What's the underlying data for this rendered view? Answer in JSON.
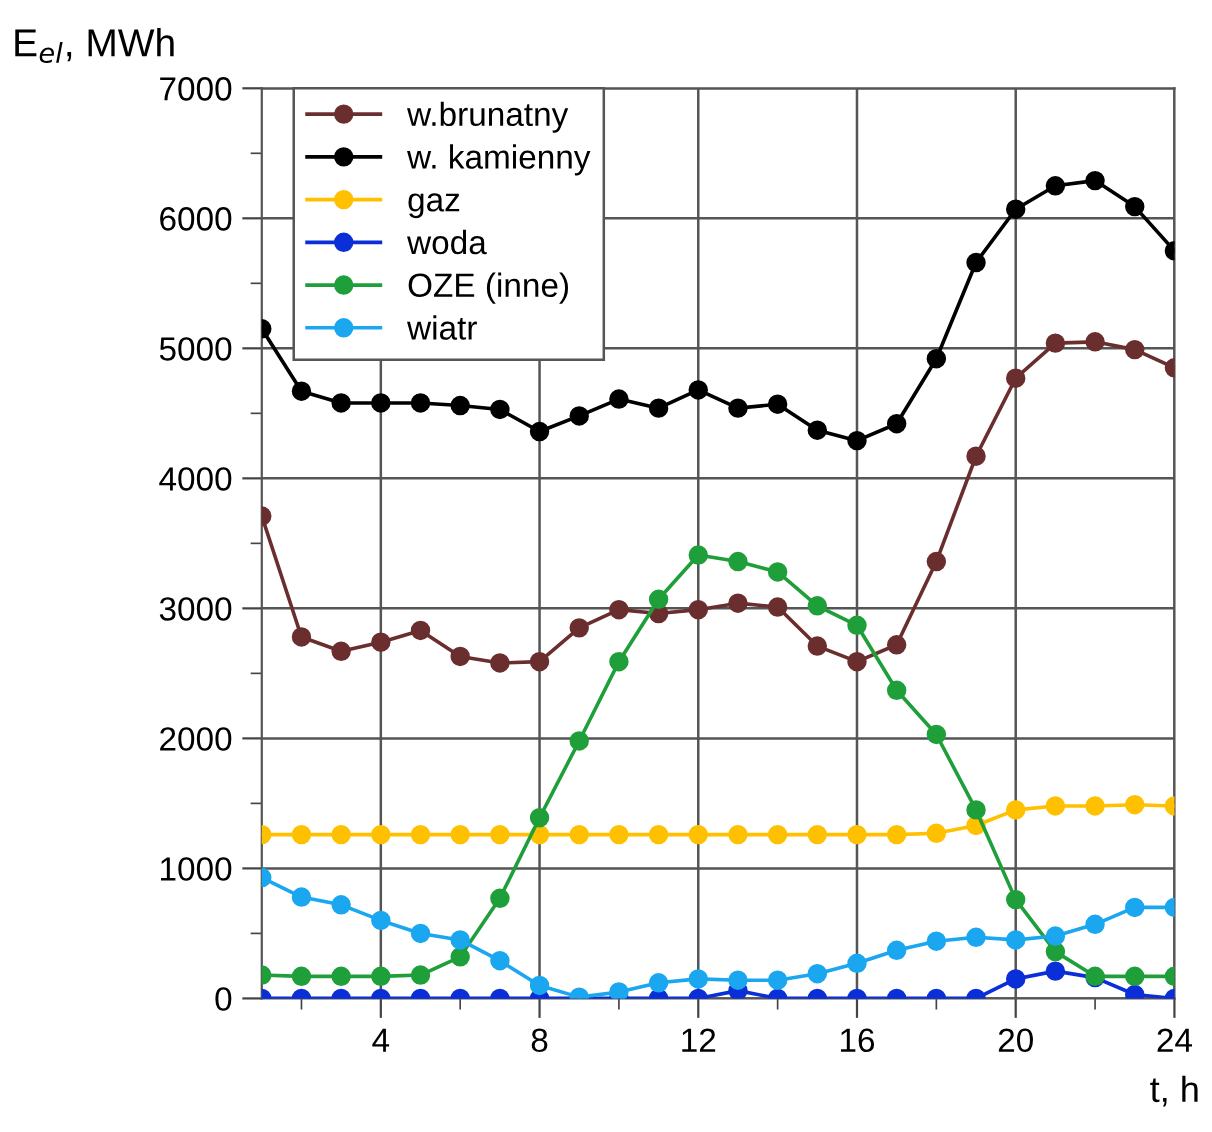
{
  "chart_data": {
    "type": "line",
    "ylabel": "E$_{el}$, MWh",
    "xlabel": "t, h",
    "x": [
      1,
      2,
      3,
      4,
      5,
      6,
      7,
      8,
      9,
      10,
      11,
      12,
      13,
      14,
      15,
      16,
      17,
      18,
      19,
      20,
      21,
      22,
      23,
      24
    ],
    "xlim": [
      1,
      24
    ],
    "xticks": [
      {
        "value": 2,
        "label": null
      },
      4,
      {
        "value": 6,
        "label": null
      },
      8,
      {
        "value": 10,
        "label": null
      },
      12,
      {
        "value": 14,
        "label": null
      },
      16,
      {
        "value": 18,
        "label": null
      },
      20,
      {
        "value": 22,
        "label": null
      },
      24
    ],
    "ylim": [
      0,
      7000
    ],
    "yticks": [
      0,
      {
        "value": 500,
        "label": null
      },
      1000,
      {
        "value": 1500,
        "label": null
      },
      2000,
      {
        "value": 2500,
        "label": null
      },
      3000,
      {
        "value": 3500,
        "label": null
      },
      4000,
      {
        "value": 4500,
        "label": null
      },
      5000,
      {
        "value": 5500,
        "label": null
      },
      6000,
      {
        "value": 6500,
        "label": null
      },
      7000
    ],
    "grid": true,
    "legend": "top left",
    "marker": "circle",
    "line_style": "solid",
    "series": [
      {
        "name": "w.brunatny",
        "color": "#6b2e2e",
        "values": [
          3710,
          2780,
          2670,
          2740,
          2830,
          2630,
          2580,
          2590,
          2850,
          2990,
          2960,
          2990,
          3040,
          3010,
          2710,
          2590,
          2720,
          3360,
          4170,
          4770,
          5040,
          5050,
          4990,
          4850
        ]
      },
      {
        "name": "w. kamienny",
        "color": "#000000",
        "values": [
          5150,
          4670,
          4580,
          4580,
          4580,
          4560,
          4530,
          4360,
          4480,
          4610,
          4540,
          4680,
          4540,
          4570,
          4370,
          4290,
          4420,
          4920,
          5660,
          6070,
          6250,
          6290,
          6090,
          5750
        ]
      },
      {
        "name": "gaz",
        "color": "#ffc000",
        "values": [
          1260,
          1260,
          1260,
          1260,
          1260,
          1260,
          1260,
          1260,
          1260,
          1260,
          1260,
          1260,
          1260,
          1260,
          1260,
          1260,
          1260,
          1270,
          1330,
          1450,
          1480,
          1480,
          1490,
          1480
        ]
      },
      {
        "name": "woda",
        "color": "#0a2fd8",
        "values": [
          0,
          0,
          0,
          0,
          0,
          0,
          0,
          0,
          0,
          0,
          0,
          0,
          60,
          0,
          0,
          0,
          0,
          0,
          0,
          150,
          210,
          160,
          30,
          0
        ]
      },
      {
        "name": "OZE (inne)",
        "color": "#1f9f3a",
        "values": [
          180,
          170,
          170,
          170,
          180,
          320,
          770,
          1390,
          1980,
          2590,
          3070,
          3410,
          3360,
          3280,
          3020,
          2870,
          2370,
          2030,
          1450,
          760,
          360,
          170,
          170,
          170
        ]
      },
      {
        "name": "wiatr",
        "color": "#1aa7f0",
        "values": [
          930,
          780,
          720,
          600,
          500,
          450,
          290,
          100,
          10,
          50,
          120,
          150,
          140,
          140,
          190,
          270,
          370,
          440,
          470,
          450,
          480,
          570,
          700,
          700
        ]
      }
    ]
  }
}
